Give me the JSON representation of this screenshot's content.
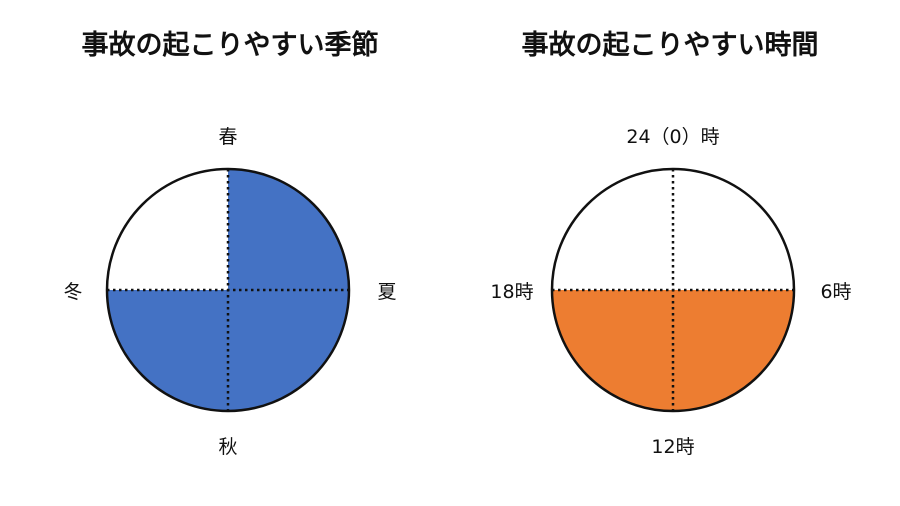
{
  "season_chart": {
    "title": "事故の起こりやすい季節",
    "labels": {
      "top": "春",
      "right": "夏",
      "bottom": "秋",
      "left": "冬"
    },
    "highlighted_quadrants": [
      "top-right",
      "bottom-right",
      "bottom-left"
    ],
    "highlight_color": "#4472c4"
  },
  "time_chart": {
    "title": "事故の起こりやすい時間",
    "labels": {
      "top": "24（0）時",
      "right": "6時",
      "bottom": "12時",
      "left": "18時"
    },
    "highlighted_quadrants": [
      "bottom-right",
      "bottom-left"
    ],
    "highlight_color": "#ed7d31"
  }
}
